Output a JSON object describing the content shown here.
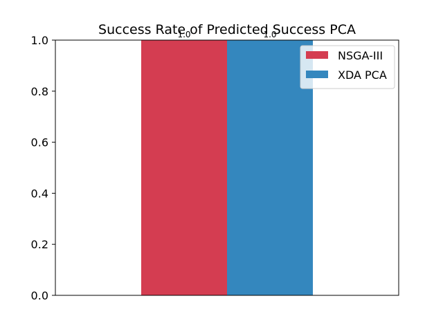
{
  "chart_data": {
    "type": "bar",
    "title": "Success Rate of Predicted Success PCA",
    "xlabel": "",
    "ylabel": "",
    "categories": [
      ""
    ],
    "series": [
      {
        "name": "NSGA-III",
        "values": [
          1.0
        ],
        "color": "#d43d51",
        "labels": [
          "1.0"
        ]
      },
      {
        "name": "XDA PCA",
        "values": [
          1.0
        ],
        "color": "#3487be",
        "labels": [
          "1.0"
        ]
      }
    ],
    "ylim": [
      0,
      1.0
    ],
    "yticks": [
      "0.0",
      "0.2",
      "0.4",
      "0.6",
      "0.8",
      "1.0"
    ],
    "grid": false,
    "legend": "top-right"
  }
}
